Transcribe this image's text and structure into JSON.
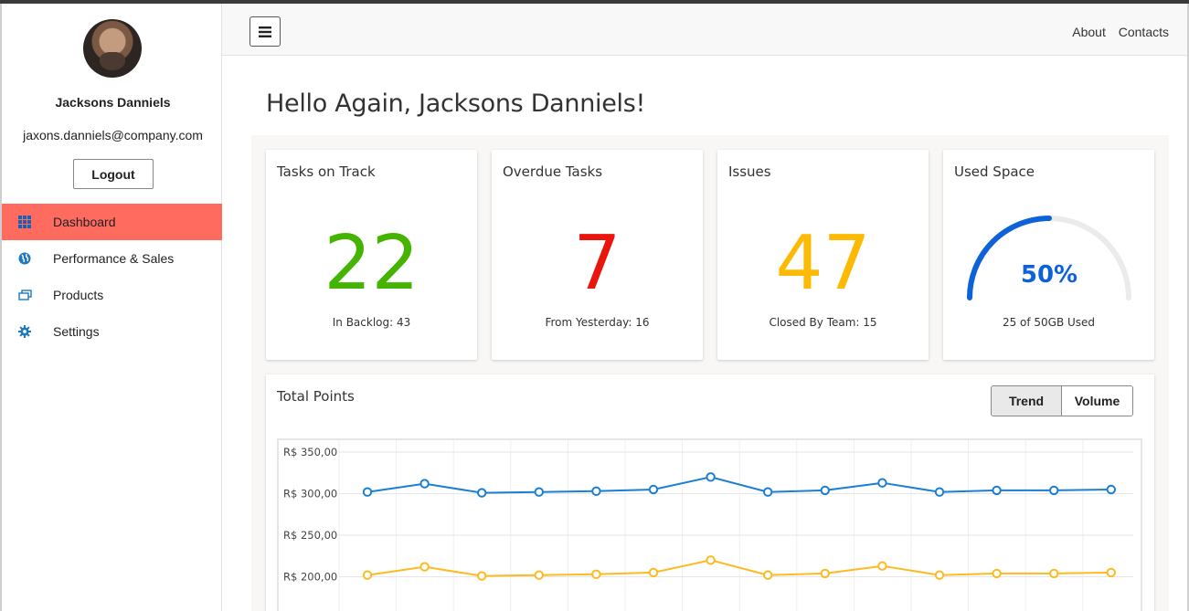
{
  "user": {
    "name": "Jacksons Danniels",
    "email": "jaxons.danniels@company.com",
    "logout_label": "Logout"
  },
  "nav": [
    {
      "label": "Dashboard",
      "icon": "grid-icon",
      "active": true
    },
    {
      "label": "Performance & Sales",
      "icon": "globe-icon",
      "active": false
    },
    {
      "label": "Products",
      "icon": "products-icon",
      "active": false
    },
    {
      "label": "Settings",
      "icon": "gear-icon",
      "active": false
    }
  ],
  "header": {
    "links": [
      "About",
      "Contacts"
    ]
  },
  "greeting": "Hello Again, Jacksons Danniels!",
  "cards": [
    {
      "title": "Tasks on Track",
      "value": "22",
      "sub": "In Backlog: 43",
      "color": "#44b400"
    },
    {
      "title": "Overdue Tasks",
      "value": "7",
      "sub": "From Yesterday: 16",
      "color": "#e8160c"
    },
    {
      "title": "Issues",
      "value": "47",
      "sub": "Closed By Team: 15",
      "color": "#fdba04"
    },
    {
      "title": "Used Space",
      "value": "50%",
      "sub": "25 of 50GB Used",
      "color": "#0d62d9",
      "fraction": 0.5
    }
  ],
  "colors": {
    "accent": "#ff6b5e",
    "nav_icon": "#1d79c2"
  },
  "chart_data": {
    "type": "line",
    "title": "Total Points",
    "toggle": [
      "Trend",
      "Volume"
    ],
    "toggle_selected": "Trend",
    "y_ticks": [
      "R$ 350,00",
      "R$ 300,00",
      "R$ 250,00",
      "R$ 200,00"
    ],
    "ylim": [
      180,
      350
    ],
    "grid": true,
    "series": [
      {
        "color": "#1a7fd4",
        "values": [
          302,
          312,
          301,
          302,
          303,
          305,
          320,
          302,
          304,
          313,
          302,
          304,
          304,
          305
        ]
      },
      {
        "color": "#fdba21",
        "values": [
          202,
          212,
          201,
          202,
          203,
          205,
          220,
          202,
          204,
          213,
          202,
          204,
          204,
          205
        ]
      }
    ]
  }
}
